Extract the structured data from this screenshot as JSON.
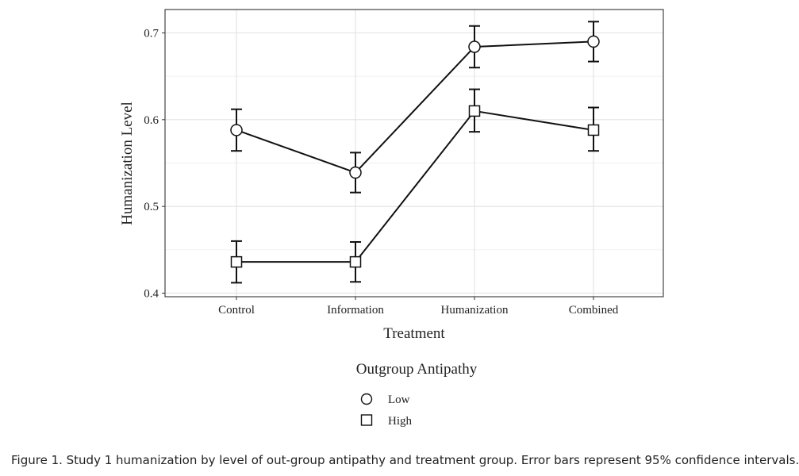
{
  "chart_data": {
    "type": "line",
    "title": "",
    "xlabel": "Treatment",
    "ylabel": "Humanization Level",
    "categories": [
      "Control",
      "Information",
      "Humanization",
      "Combined"
    ],
    "ylim": [
      0.4,
      0.73
    ],
    "yticks": [
      0.4,
      0.5,
      0.6,
      0.7
    ],
    "ytick_labels": [
      "0.4",
      "0.5",
      "0.6",
      "0.7"
    ],
    "grid": true,
    "legend": {
      "title": "Outgroup Antipathy",
      "position": "bottom"
    },
    "series": [
      {
        "name": "Low",
        "marker": "circle",
        "values": [
          0.588,
          0.539,
          0.684,
          0.69
        ],
        "ci_low": [
          0.564,
          0.516,
          0.66,
          0.667
        ],
        "ci_high": [
          0.612,
          0.562,
          0.708,
          0.713
        ]
      },
      {
        "name": "High",
        "marker": "square",
        "values": [
          0.436,
          0.436,
          0.61,
          0.588
        ],
        "ci_low": [
          0.412,
          0.413,
          0.586,
          0.564
        ],
        "ci_high": [
          0.46,
          0.459,
          0.635,
          0.614
        ]
      }
    ]
  },
  "caption": "Figure 1. Study 1 humanization by level of out-group antipathy and treatment group. Error bars represent 95% confidence intervals."
}
